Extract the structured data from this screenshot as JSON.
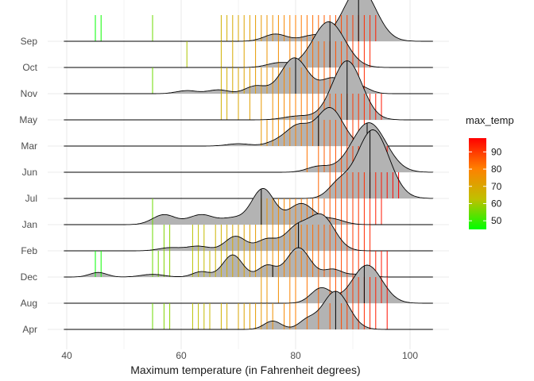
{
  "chart_data": {
    "type": "ridgeline",
    "xlabel": "Maximum temperature (in Fahrenheit degrees)",
    "ylabel": "",
    "xlim": [
      38,
      105
    ],
    "x_ticks": [
      40,
      60,
      80,
      100
    ],
    "grid": true,
    "categories": [
      "Apr",
      "Aug",
      "Dec",
      "Feb",
      "Jan",
      "Jul",
      "Jun",
      "Mar",
      "May",
      "Nov",
      "Oct",
      "Sep"
    ],
    "legend": {
      "title": "max_temp",
      "position": "right",
      "ticks": [
        50,
        60,
        70,
        80,
        90
      ],
      "range": [
        45,
        98
      ],
      "colors": [
        "#00ff00",
        "#c0c000",
        "#ff8000",
        "#ff0000"
      ]
    },
    "series": [
      {
        "category": "Apr",
        "median": 87,
        "rug": [
          55,
          57,
          58,
          62,
          63,
          64,
          65,
          67,
          68,
          70,
          71,
          72,
          73,
          74,
          75,
          76,
          78,
          79,
          80,
          82,
          84,
          86,
          88,
          89,
          90,
          91,
          92,
          93,
          94,
          96
        ],
        "peaks": [
          [
            76,
            0.22,
            1.5
          ],
          [
            82,
            0.22,
            1.5
          ],
          [
            87,
            1.0,
            2.3
          ]
        ]
      },
      {
        "category": "Aug",
        "median": 92,
        "rug": [
          74,
          75,
          77,
          79,
          80,
          82,
          84,
          86,
          87,
          88,
          89,
          90,
          91,
          92,
          93,
          94,
          95,
          96
        ],
        "peaks": [
          [
            84.5,
            0.4,
            1.8
          ],
          [
            92.5,
            1.0,
            2.6
          ]
        ]
      },
      {
        "category": "Dec",
        "median": 76,
        "rug": [
          45,
          46,
          55,
          56,
          57,
          58,
          62,
          63,
          64,
          65,
          66,
          67,
          68,
          69,
          70,
          71,
          72,
          73,
          74,
          75,
          76,
          77,
          78,
          79,
          80,
          81,
          82,
          83,
          84,
          85,
          86,
          87,
          88,
          89,
          90,
          91,
          92,
          93,
          94,
          95,
          96
        ],
        "peaks": [
          [
            45.5,
            0.12,
            1.5
          ],
          [
            55,
            0.07,
            2.0
          ],
          [
            63.5,
            0.14,
            1.5
          ],
          [
            69,
            0.58,
            1.7
          ],
          [
            75,
            0.3,
            1.5
          ],
          [
            80.5,
            0.77,
            2.0
          ],
          [
            86.5,
            0.2,
            1.6
          ],
          [
            91,
            0.07,
            1.8
          ]
        ]
      },
      {
        "category": "Feb",
        "median": 80.5,
        "rug": [
          55,
          57,
          58,
          62,
          63,
          64,
          66,
          67,
          68,
          69,
          70,
          71,
          72,
          73,
          74,
          75,
          76,
          77,
          78,
          79,
          80,
          81,
          82,
          83,
          84,
          85,
          86,
          87,
          88,
          89,
          90,
          91,
          92,
          93
        ],
        "peaks": [
          [
            58,
            0.08,
            2.0
          ],
          [
            63,
            0.12,
            2.0
          ],
          [
            69.5,
            0.38,
            1.8
          ],
          [
            75,
            0.3,
            1.8
          ],
          [
            80,
            0.55,
            2.0
          ],
          [
            84.5,
            0.92,
            2.3
          ]
        ]
      },
      {
        "category": "Jan",
        "median": 74,
        "rug": [
          55,
          74,
          75,
          76,
          77,
          78,
          79,
          80,
          81,
          82,
          83,
          84,
          85,
          86,
          87,
          88,
          89,
          90,
          91,
          92,
          93,
          94,
          95
        ],
        "peaks": [
          [
            57,
            0.26,
            2.0
          ],
          [
            63.5,
            0.26,
            2.2
          ],
          [
            69,
            0.16,
            2.0
          ],
          [
            74.3,
            0.94,
            2.0
          ],
          [
            81,
            0.55,
            2.2
          ],
          [
            86.5,
            0.14,
            2.0
          ]
        ]
      },
      {
        "category": "Jul",
        "median": 93,
        "rug": [
          84,
          86,
          87,
          88,
          89,
          90,
          91,
          92,
          93,
          94,
          95,
          96,
          97,
          98
        ],
        "peaks": [
          [
            87.5,
            0.35,
            1.8
          ],
          [
            93.5,
            1.8,
            2.8
          ]
        ]
      },
      {
        "category": "Jun",
        "median": 92.5,
        "rug": [
          82,
          84,
          85,
          86,
          87,
          88,
          89,
          90,
          91,
          92,
          93,
          94,
          95,
          96
        ],
        "peaks": [
          [
            84,
            0.15,
            2.0
          ],
          [
            92.8,
            1.3,
            3.0
          ]
        ]
      },
      {
        "category": "Mar",
        "median": 84,
        "rug": [
          74,
          75,
          76,
          77,
          78,
          79,
          80,
          81,
          82,
          83,
          84,
          85,
          86,
          87,
          88,
          89,
          90,
          91,
          92
        ],
        "peaks": [
          [
            70,
            0.06,
            2.0
          ],
          [
            77,
            0.12,
            2.0
          ],
          [
            80.5,
            0.5,
            2.0
          ],
          [
            86,
            1.0,
            2.3
          ]
        ]
      },
      {
        "category": "May",
        "median": 89,
        "rug": [
          67,
          68,
          70,
          72,
          74,
          76,
          77,
          78,
          79,
          80,
          81,
          82,
          83,
          84,
          85,
          86,
          87,
          88,
          89,
          90,
          91,
          92,
          93,
          94,
          95
        ],
        "peaks": [
          [
            80.5,
            0.1,
            2.5
          ],
          [
            89,
            1.55,
            2.6
          ]
        ]
      },
      {
        "category": "Nov",
        "median": 80,
        "rug": [
          55,
          67,
          68,
          69,
          70,
          71,
          72,
          73,
          74,
          75,
          76,
          77,
          78,
          79,
          80,
          81,
          82,
          83,
          84,
          85,
          86,
          87,
          88,
          89,
          90,
          91,
          92
        ],
        "peaks": [
          [
            61,
            0.08,
            1.8
          ],
          [
            66.5,
            0.1,
            1.8
          ],
          [
            73,
            0.2,
            1.8
          ],
          [
            79.8,
            0.94,
            2.3
          ],
          [
            86.5,
            0.4,
            2.0
          ],
          [
            91,
            0.2,
            1.8
          ]
        ]
      },
      {
        "category": "Oct",
        "median": 86,
        "rug": [
          61,
          67,
          69,
          71,
          73,
          75,
          77,
          79,
          80,
          81,
          82,
          83,
          84,
          85,
          86,
          87,
          88,
          89,
          90,
          91,
          92,
          93
        ],
        "peaks": [
          [
            77,
            0.12,
            2.0
          ],
          [
            85.8,
            1.2,
            2.8
          ]
        ]
      },
      {
        "category": "Sep",
        "median": 91,
        "rug": [
          45,
          46,
          55,
          67,
          68,
          69,
          70,
          71,
          72,
          73,
          74,
          75,
          76,
          77,
          78,
          79,
          80,
          81,
          82,
          83,
          84,
          85,
          86,
          87,
          88,
          89,
          90,
          91,
          92,
          93,
          94
        ],
        "peaks": [
          [
            76.5,
            0.19,
            2.0
          ],
          [
            83,
            0.15,
            2.0
          ],
          [
            91.2,
            1.4,
            2.8
          ]
        ]
      }
    ]
  }
}
